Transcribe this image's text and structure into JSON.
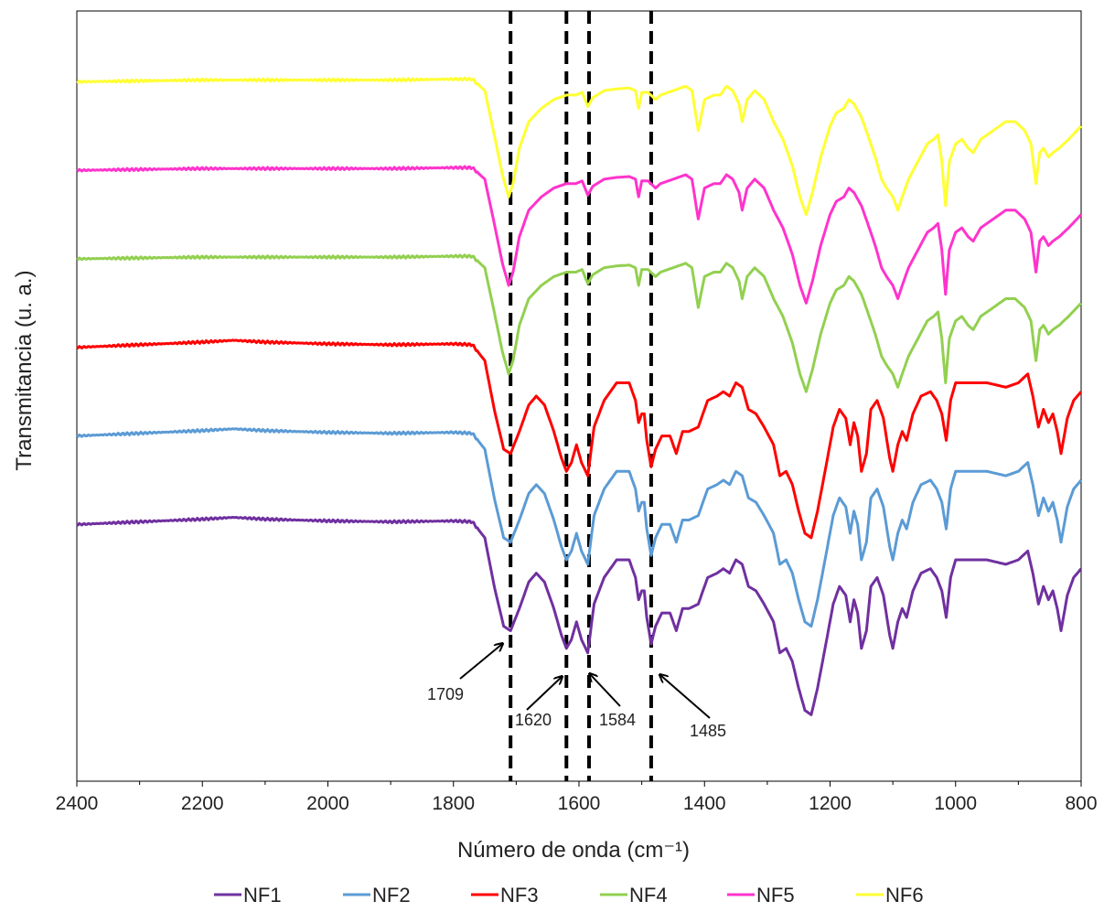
{
  "chart_data": {
    "type": "line",
    "title": "",
    "xlabel": "Número de onda (cm⁻¹)",
    "ylabel": "Transmitancia (u. a.)",
    "xlim": [
      2400,
      800
    ],
    "x_reversed": true,
    "xticks": [
      2400,
      2200,
      2000,
      1800,
      1600,
      1400,
      1200,
      1000,
      800
    ],
    "y_ticks_shown": false,
    "grid": false,
    "legend_position": "bottom",
    "reference_lines_x": [
      1709,
      1620,
      1584,
      1485
    ],
    "annotations": [
      {
        "text": "1709",
        "x": 1709
      },
      {
        "text": "1620",
        "x": 1620
      },
      {
        "text": "1584",
        "x": 1584
      },
      {
        "text": "1485",
        "x": 1485
      }
    ],
    "series": [
      {
        "name": "NF1",
        "color": "#7030A0",
        "profile": "A",
        "baseline": 6.2
      },
      {
        "name": "NF2",
        "color": "#5B9BD5",
        "profile": "A",
        "baseline": 7.2
      },
      {
        "name": "NF3",
        "color": "#FF0000",
        "profile": "A",
        "baseline": 8.2
      },
      {
        "name": "NF4",
        "color": "#92D050",
        "profile": "B",
        "baseline": 9.2
      },
      {
        "name": "NF5",
        "color": "#FF33CC",
        "profile": "B",
        "baseline": 10.2
      },
      {
        "name": "NF6",
        "color": "#FFFF33",
        "profile": "B",
        "baseline": 11.2
      }
    ],
    "profiles": {
      "A": [
        [
          2400,
          0.0
        ],
        [
          2300,
          0.03
        ],
        [
          2200,
          0.06
        ],
        [
          2150,
          0.08
        ],
        [
          2100,
          0.06
        ],
        [
          2000,
          0.04
        ],
        [
          1900,
          0.03
        ],
        [
          1800,
          0.04
        ],
        [
          1770,
          0.03
        ],
        [
          1750,
          -0.15
        ],
        [
          1735,
          -0.7
        ],
        [
          1720,
          -1.15
        ],
        [
          1709,
          -1.2
        ],
        [
          1695,
          -0.95
        ],
        [
          1680,
          -0.65
        ],
        [
          1668,
          -0.55
        ],
        [
          1655,
          -0.65
        ],
        [
          1640,
          -0.95
        ],
        [
          1628,
          -1.25
        ],
        [
          1620,
          -1.4
        ],
        [
          1612,
          -1.3
        ],
        [
          1604,
          -1.1
        ],
        [
          1596,
          -1.3
        ],
        [
          1586,
          -1.45
        ],
        [
          1576,
          -0.9
        ],
        [
          1560,
          -0.6
        ],
        [
          1540,
          -0.4
        ],
        [
          1520,
          -0.4
        ],
        [
          1510,
          -0.6
        ],
        [
          1505,
          -0.85
        ],
        [
          1500,
          -0.75
        ],
        [
          1496,
          -0.75
        ],
        [
          1492,
          -1.05
        ],
        [
          1485,
          -1.35
        ],
        [
          1478,
          -1.15
        ],
        [
          1468,
          -1.0
        ],
        [
          1455,
          -1.0
        ],
        [
          1445,
          -1.2
        ],
        [
          1435,
          -0.95
        ],
        [
          1425,
          -0.95
        ],
        [
          1410,
          -0.9
        ],
        [
          1395,
          -0.6
        ],
        [
          1380,
          -0.55
        ],
        [
          1370,
          -0.5
        ],
        [
          1360,
          -0.55
        ],
        [
          1350,
          -0.4
        ],
        [
          1340,
          -0.45
        ],
        [
          1330,
          -0.7
        ],
        [
          1318,
          -0.75
        ],
        [
          1305,
          -0.9
        ],
        [
          1290,
          -1.1
        ],
        [
          1280,
          -1.45
        ],
        [
          1270,
          -1.4
        ],
        [
          1260,
          -1.55
        ],
        [
          1250,
          -1.85
        ],
        [
          1240,
          -2.1
        ],
        [
          1230,
          -2.15
        ],
        [
          1220,
          -1.85
        ],
        [
          1208,
          -1.4
        ],
        [
          1195,
          -0.9
        ],
        [
          1185,
          -0.7
        ],
        [
          1175,
          -0.8
        ],
        [
          1168,
          -1.1
        ],
        [
          1162,
          -0.85
        ],
        [
          1156,
          -1.0
        ],
        [
          1150,
          -1.4
        ],
        [
          1142,
          -1.2
        ],
        [
          1135,
          -0.7
        ],
        [
          1125,
          -0.6
        ],
        [
          1115,
          -0.8
        ],
        [
          1105,
          -1.25
        ],
        [
          1100,
          -1.4
        ],
        [
          1092,
          -1.1
        ],
        [
          1085,
          -0.95
        ],
        [
          1078,
          -1.05
        ],
        [
          1068,
          -0.75
        ],
        [
          1055,
          -0.55
        ],
        [
          1040,
          -0.5
        ],
        [
          1030,
          -0.6
        ],
        [
          1022,
          -0.75
        ],
        [
          1015,
          -1.05
        ],
        [
          1008,
          -0.6
        ],
        [
          1000,
          -0.4
        ],
        [
          980,
          -0.4
        ],
        [
          950,
          -0.4
        ],
        [
          920,
          -0.45
        ],
        [
          900,
          -0.4
        ],
        [
          885,
          -0.3
        ],
        [
          877,
          -0.55
        ],
        [
          868,
          -0.9
        ],
        [
          860,
          -0.7
        ],
        [
          852,
          -0.85
        ],
        [
          845,
          -0.75
        ],
        [
          838,
          -0.95
        ],
        [
          832,
          -1.2
        ],
        [
          822,
          -0.8
        ],
        [
          812,
          -0.6
        ],
        [
          800,
          -0.5
        ]
      ],
      "B": [
        [
          2400,
          0.0
        ],
        [
          2300,
          0.01
        ],
        [
          2200,
          0.02
        ],
        [
          2100,
          0.02
        ],
        [
          2000,
          0.02
        ],
        [
          1900,
          0.02
        ],
        [
          1800,
          0.03
        ],
        [
          1770,
          0.03
        ],
        [
          1750,
          -0.1
        ],
        [
          1735,
          -0.6
        ],
        [
          1722,
          -1.05
        ],
        [
          1712,
          -1.3
        ],
        [
          1705,
          -1.15
        ],
        [
          1695,
          -0.75
        ],
        [
          1680,
          -0.45
        ],
        [
          1660,
          -0.3
        ],
        [
          1640,
          -0.2
        ],
        [
          1620,
          -0.15
        ],
        [
          1605,
          -0.15
        ],
        [
          1595,
          -0.12
        ],
        [
          1586,
          -0.28
        ],
        [
          1578,
          -0.18
        ],
        [
          1560,
          -0.1
        ],
        [
          1540,
          -0.08
        ],
        [
          1520,
          -0.07
        ],
        [
          1510,
          -0.1
        ],
        [
          1505,
          -0.3
        ],
        [
          1500,
          -0.12
        ],
        [
          1490,
          -0.12
        ],
        [
          1478,
          -0.2
        ],
        [
          1470,
          -0.15
        ],
        [
          1450,
          -0.1
        ],
        [
          1430,
          -0.05
        ],
        [
          1420,
          -0.1
        ],
        [
          1410,
          -0.55
        ],
        [
          1400,
          -0.2
        ],
        [
          1385,
          -0.15
        ],
        [
          1375,
          -0.15
        ],
        [
          1365,
          -0.05
        ],
        [
          1355,
          -0.1
        ],
        [
          1345,
          -0.25
        ],
        [
          1340,
          -0.45
        ],
        [
          1332,
          -0.2
        ],
        [
          1320,
          -0.1
        ],
        [
          1305,
          -0.2
        ],
        [
          1290,
          -0.45
        ],
        [
          1275,
          -0.65
        ],
        [
          1260,
          -0.95
        ],
        [
          1248,
          -1.3
        ],
        [
          1238,
          -1.5
        ],
        [
          1228,
          -1.25
        ],
        [
          1215,
          -0.85
        ],
        [
          1200,
          -0.5
        ],
        [
          1190,
          -0.35
        ],
        [
          1178,
          -0.3
        ],
        [
          1170,
          -0.2
        ],
        [
          1162,
          -0.25
        ],
        [
          1150,
          -0.4
        ],
        [
          1140,
          -0.6
        ],
        [
          1128,
          -0.85
        ],
        [
          1118,
          -1.1
        ],
        [
          1110,
          -1.2
        ],
        [
          1100,
          -1.3
        ],
        [
          1092,
          -1.45
        ],
        [
          1085,
          -1.3
        ],
        [
          1075,
          -1.1
        ],
        [
          1060,
          -0.9
        ],
        [
          1045,
          -0.7
        ],
        [
          1035,
          -0.65
        ],
        [
          1028,
          -0.6
        ],
        [
          1022,
          -0.9
        ],
        [
          1016,
          -1.4
        ],
        [
          1010,
          -0.9
        ],
        [
          1000,
          -0.7
        ],
        [
          990,
          -0.65
        ],
        [
          980,
          -0.75
        ],
        [
          972,
          -0.8
        ],
        [
          960,
          -0.65
        ],
        [
          940,
          -0.55
        ],
        [
          920,
          -0.45
        ],
        [
          905,
          -0.45
        ],
        [
          890,
          -0.55
        ],
        [
          880,
          -0.7
        ],
        [
          872,
          -1.15
        ],
        [
          866,
          -0.8
        ],
        [
          860,
          -0.75
        ],
        [
          852,
          -0.85
        ],
        [
          845,
          -0.8
        ],
        [
          835,
          -0.75
        ],
        [
          820,
          -0.65
        ],
        [
          800,
          -0.5
        ]
      ]
    },
    "y_domain": [
      3.3,
      12.0
    ]
  }
}
